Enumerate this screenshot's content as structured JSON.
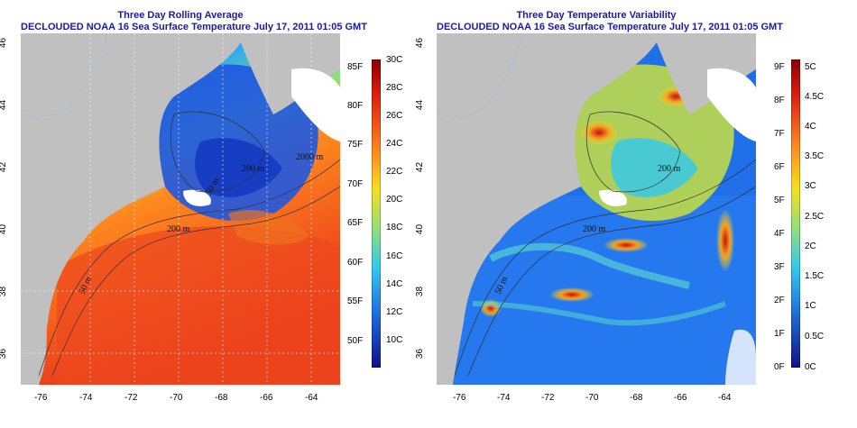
{
  "left_map": {
    "title": "Three Day Rolling Average",
    "subtitle": "DECLOUDED NOAA 16 Sea Surface Temperature July 17, 2011 01:05 GMT",
    "x_ticks": [
      "-76",
      "-74",
      "-72",
      "-70",
      "-68",
      "-66",
      "-64"
    ],
    "y_ticks": [
      "46",
      "44",
      "42",
      "40",
      "38",
      "36"
    ],
    "contour_labels": [
      "2000 m",
      "200 m",
      "50 m",
      "200 m",
      "50 m"
    ],
    "colorbar": {
      "left_labels": [
        "85F",
        "80F",
        "75F",
        "70F",
        "65F",
        "60F",
        "55F",
        "50F"
      ],
      "right_labels": [
        "30C",
        "28C",
        "26C",
        "24C",
        "22C",
        "20C",
        "18C",
        "16C",
        "14C",
        "12C",
        "10C"
      ]
    }
  },
  "right_map": {
    "title": "Three Day Temperature Variability",
    "subtitle": "DECLOUDED NOAA 16 Sea Surface Temperature July 17, 2011 01:05 GMT",
    "x_ticks": [
      "-76",
      "-74",
      "-72",
      "-70",
      "-68",
      "-66",
      "-64"
    ],
    "y_ticks": [
      "46",
      "44",
      "42",
      "40",
      "38",
      "36"
    ],
    "contour_labels": [
      "200 m",
      "200 m",
      "50 m"
    ],
    "colorbar": {
      "left_labels": [
        "9F",
        "8F",
        "7F",
        "6F",
        "5F",
        "4F",
        "3F",
        "2F",
        "1F",
        "0F"
      ],
      "right_labels": [
        "5C",
        "4.5C",
        "4C",
        "3.5C",
        "3C",
        "2.5C",
        "2C",
        "1.5C",
        "1C",
        "0.5C",
        "0C"
      ]
    }
  },
  "colors": {
    "land": "#c0c0c0",
    "title": "#1a1aa6",
    "contour": "#303030"
  }
}
